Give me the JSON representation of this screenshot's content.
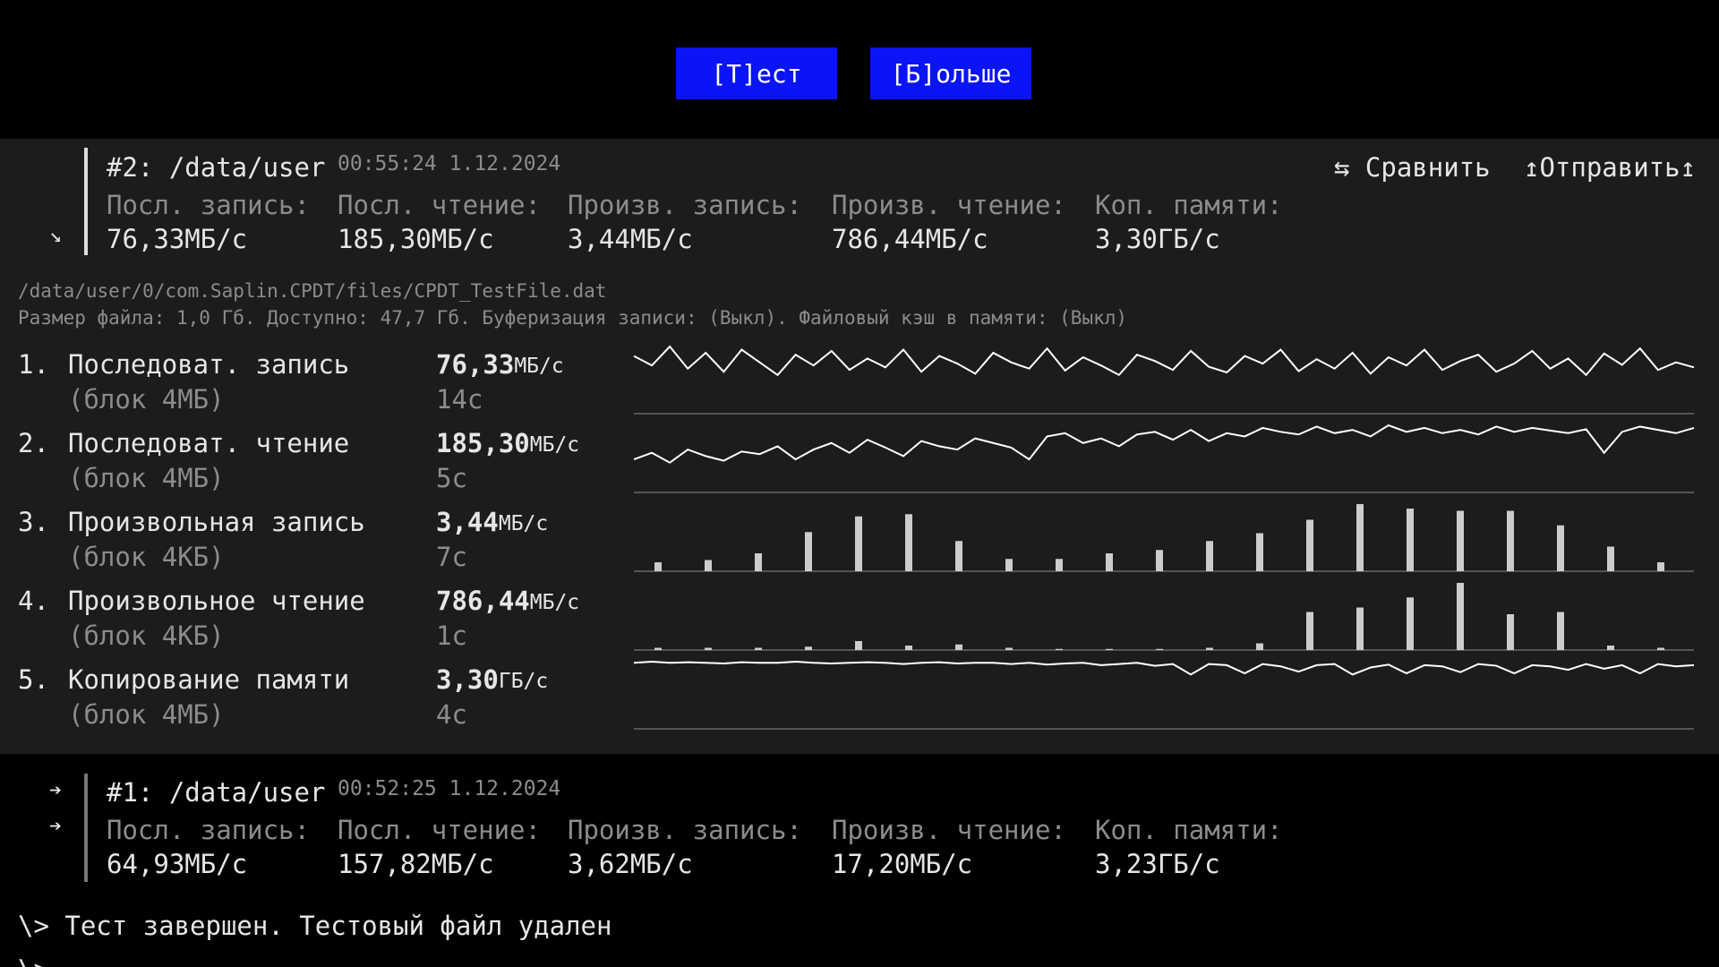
{
  "buttons": [
    "[Т]ест",
    "[Б]ольше"
  ],
  "actions": [
    "⇆ Сравнить",
    "↥Отправить↥"
  ],
  "results": [
    {
      "arrows": [
        "↘"
      ],
      "title": "#2: /data/user",
      "time": "00:55:24 1.12.2024",
      "labels": [
        "Посл. запись:",
        "Посл. чтение:",
        "Произв. запись:",
        "Произв. чтение:",
        "Коп. памяти:"
      ],
      "values": [
        "76,33МБ/с",
        "185,30МБ/с",
        "3,44МБ/с",
        "786,44МБ/с",
        "3,30ГБ/с"
      ]
    },
    {
      "arrows": [
        "➔",
        "➔"
      ],
      "title": "#1: /data/user",
      "time": "00:52:25 1.12.2024",
      "labels": [
        "Посл. запись:",
        "Посл. чтение:",
        "Произв. запись:",
        "Произв. чтение:",
        "Коп. памяти:"
      ],
      "values": [
        "64,93МБ/с",
        "157,82МБ/с",
        "3,62МБ/с",
        "17,20МБ/с",
        "3,23ГБ/с"
      ]
    }
  ],
  "file_path": "/data/user/0/com.Saplin.CPDT/files/CPDT_TestFile.dat",
  "file_info": "Размер файла: 1,0 Гб. Доступно: 47,7 Гб. Буферизация записи: (Выкл). Файловый кэш в памяти: (Выкл)",
  "tests": [
    {
      "num": "1.",
      "name": "Последоват. запись",
      "block": "(блок 4МБ)",
      "value": "76,33",
      "unit": "МБ/с",
      "time": "14с"
    },
    {
      "num": "2.",
      "name": "Последоват. чтение",
      "block": "(блок 4МБ)",
      "value": "185,30",
      "unit": "МБ/с",
      "time": "5с"
    },
    {
      "num": "3.",
      "name": "Произвольная запись",
      "block": "(блок 4КБ)",
      "value": "3,44",
      "unit": "МБ/с",
      "time": "7с"
    },
    {
      "num": "4.",
      "name": "Произвольное чтение",
      "block": "(блок 4КБ)",
      "value": "786,44",
      "unit": "МБ/с",
      "time": "1с"
    },
    {
      "num": "5.",
      "name": "Копирование памяти",
      "block": "(блок 4МБ)",
      "value": "3,30",
      "unit": "ГБ/с",
      "time": "4с"
    }
  ],
  "graphs": [
    {
      "type": "line",
      "values": [
        70,
        55,
        85,
        50,
        75,
        45,
        80,
        60,
        40,
        72,
        55,
        78,
        48,
        66,
        52,
        80,
        45,
        70,
        58,
        42,
        75,
        60,
        50,
        82,
        47,
        68,
        55,
        40,
        72,
        62,
        48,
        78,
        53,
        44,
        70,
        58,
        80,
        46,
        65,
        50,
        75,
        42,
        68,
        55,
        80,
        48,
        62,
        72,
        45,
        58,
        78,
        50,
        66,
        40,
        74,
        56,
        82,
        48,
        60,
        52
      ]
    },
    {
      "type": "line",
      "values": [
        30,
        40,
        25,
        45,
        35,
        28,
        42,
        38,
        50,
        30,
        45,
        55,
        40,
        60,
        48,
        35,
        58,
        50,
        45,
        62,
        55,
        48,
        30,
        65,
        70,
        55,
        62,
        50,
        68,
        72,
        60,
        75,
        58,
        70,
        65,
        78,
        72,
        68,
        80,
        70,
        75,
        65,
        82,
        72,
        78,
        70,
        75,
        68,
        80,
        72,
        78,
        74,
        70,
        76,
        40,
        72,
        80,
        75,
        70,
        78
      ]
    },
    {
      "type": "bar",
      "values": [
        8,
        10,
        16,
        35,
        49,
        51,
        27,
        11,
        11,
        16,
        19,
        27,
        34,
        46,
        60,
        56,
        54,
        54,
        41,
        22,
        8
      ]
    },
    {
      "type": "bar",
      "values": [
        2,
        2,
        2,
        3,
        8,
        4,
        5,
        2,
        1,
        1,
        1,
        2,
        6,
        34,
        38,
        47,
        60,
        32,
        34,
        4,
        2
      ]
    },
    {
      "type": "line",
      "values": [
        90,
        92,
        90,
        91,
        90,
        89,
        91,
        90,
        90,
        92,
        90,
        89,
        90,
        91,
        90,
        88,
        90,
        91,
        89,
        90,
        90,
        88,
        90,
        87,
        89,
        90,
        86,
        88,
        90,
        85,
        88,
        70,
        88,
        86,
        72,
        88,
        84,
        75,
        86,
        88,
        70,
        82,
        87,
        72,
        86,
        84,
        74,
        88,
        85,
        72,
        86,
        84,
        78,
        88,
        80,
        86,
        72,
        88,
        84,
        86
      ]
    }
  ],
  "console": [
    "\\> Тест завершен. Тестовый файл удален",
    "\\>"
  ]
}
